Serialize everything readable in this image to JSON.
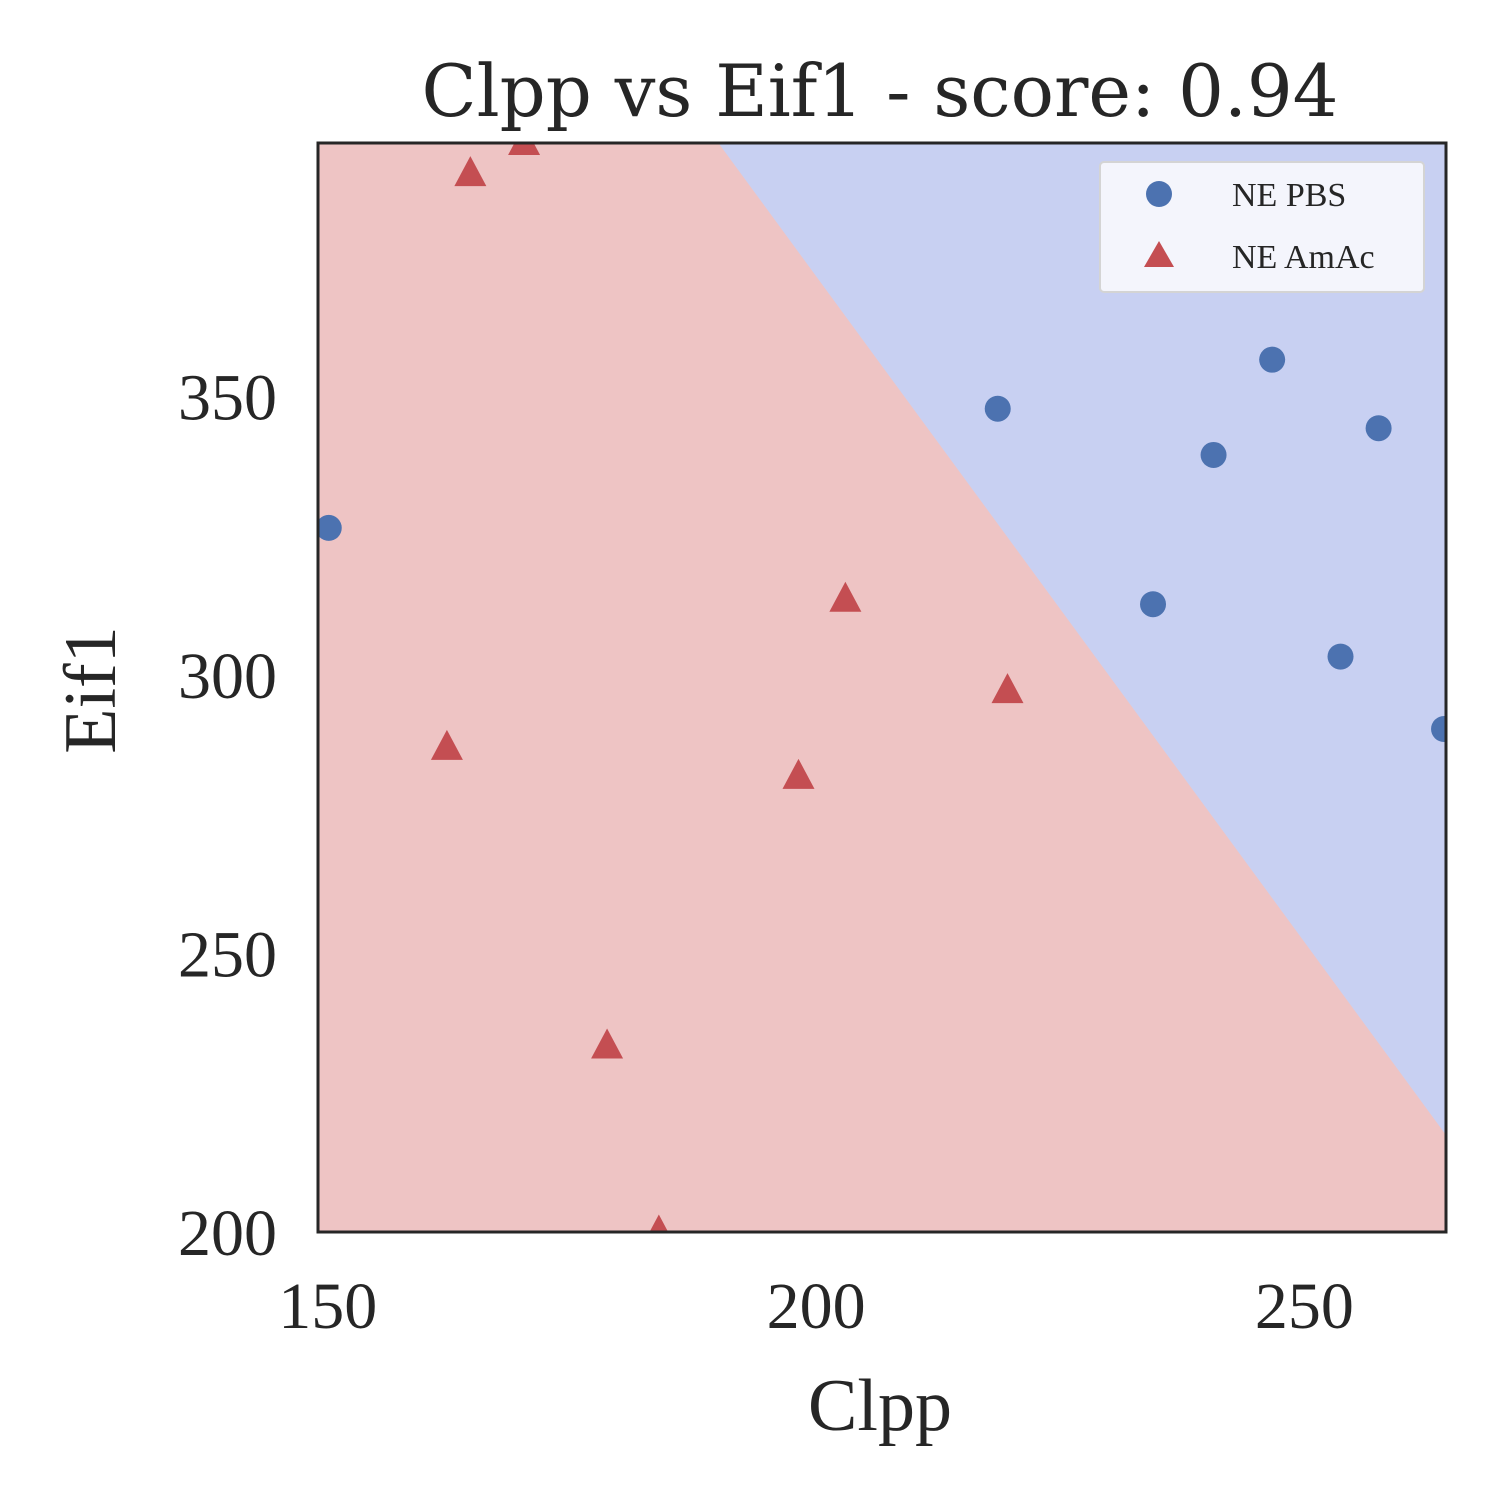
{
  "chart_data": {
    "type": "scatter",
    "title": "Clpp vs Eif1 - score: 0.94",
    "xlabel": "Clpp",
    "ylabel": "Eif1",
    "xlim": [
      149,
      264.5
    ],
    "ylim": [
      200,
      395.5
    ],
    "xticks": [
      150,
      200,
      250
    ],
    "yticks": [
      200,
      250,
      300,
      350
    ],
    "grid": false,
    "legend_position": "top-right",
    "decision_boundary": {
      "points": [
        [
          190,
          395.5
        ],
        [
          264.5,
          217.4
        ]
      ],
      "region_above_color": "#c8d0f2",
      "region_below_color": "#eec4c4"
    },
    "series": [
      {
        "name": "NE PBS",
        "marker": "circle",
        "color": "#4c72b0",
        "points": [
          [
            150.1,
            326.4
          ],
          [
            218.6,
            347.8
          ],
          [
            240.7,
            339.5
          ],
          [
            246.7,
            356.6
          ],
          [
            257.6,
            344.3
          ],
          [
            234.5,
            312.7
          ],
          [
            253.7,
            303.3
          ],
          [
            264.3,
            290.3
          ]
        ]
      },
      {
        "name": "NE AmAc",
        "marker": "triangle",
        "color": "#c44e52",
        "points": [
          [
            164.6,
            389.8
          ],
          [
            170.1,
            395.4
          ],
          [
            203.0,
            313.4
          ],
          [
            219.6,
            297.0
          ],
          [
            162.2,
            286.8
          ],
          [
            198.2,
            281.6
          ],
          [
            178.6,
            233.2
          ],
          [
            183.9,
            199.8
          ]
        ]
      }
    ]
  }
}
